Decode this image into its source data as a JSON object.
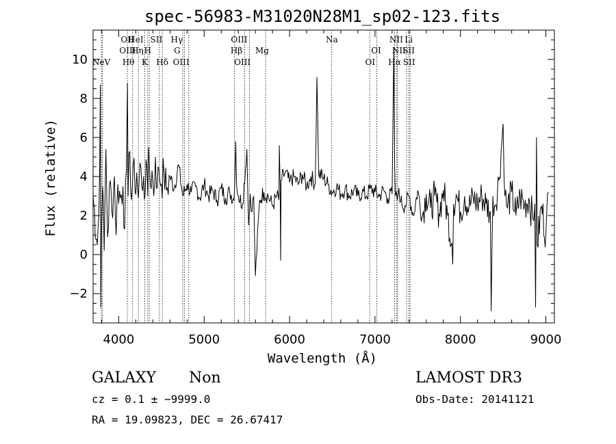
{
  "chart_data": {
    "type": "line",
    "title": "spec-56983-M31020N28M1_sp02-123.fits",
    "xlabel": "Wavelength (Å)",
    "ylabel": "Flux (relative)",
    "xlim": [
      3700,
      9100
    ],
    "ylim": [
      -3.5,
      11.5
    ],
    "xticks": [
      4000,
      5000,
      6000,
      7000,
      8000,
      9000
    ],
    "xtick_labels": [
      "4000",
      "5000",
      "6000",
      "7000",
      "8000",
      "9000"
    ],
    "yticks": [
      -2,
      0,
      2,
      4,
      6,
      8,
      10
    ],
    "ytick_labels": [
      "−2",
      "0",
      "2",
      "4",
      "6",
      "8",
      "10"
    ],
    "grid": false,
    "series": [
      {
        "x": [
          3700,
          3750,
          3770,
          3785,
          3790,
          3800,
          3812,
          3830,
          3850,
          3870,
          3900,
          3920,
          3950,
          3970,
          3990,
          4020,
          4050,
          4070,
          4090,
          4102,
          4110,
          4130,
          4150,
          4170,
          4190,
          4210,
          4230,
          4250,
          4270,
          4290,
          4310,
          4330,
          4340,
          4350,
          4370,
          4390,
          4410,
          4430,
          4450,
          4470,
          4500,
          4530,
          4560,
          4600,
          4650,
          4700,
          4750,
          4800,
          4850,
          4900,
          4950,
          5000,
          5050,
          5100,
          5150,
          5200,
          5250,
          5300,
          5350,
          5370,
          5380,
          5400,
          5450,
          5500,
          5520,
          5540,
          5560,
          5580,
          5600,
          5650,
          5700,
          5750,
          5800,
          5850,
          5875,
          5880,
          5890,
          5895,
          5900,
          5950,
          6000,
          6050,
          6100,
          6150,
          6200,
          6250,
          6300,
          6320,
          6340,
          6400,
          6450,
          6500,
          6550,
          6600,
          6650,
          6700,
          6750,
          6800,
          6850,
          6900,
          6950,
          7000,
          7050,
          7100,
          7150,
          7200,
          7220,
          7230,
          7240,
          7260,
          7280,
          7300,
          7350,
          7400,
          7450,
          7500,
          7550,
          7600,
          7650,
          7700,
          7750,
          7800,
          7850,
          7900,
          7910,
          7920,
          7950,
          8000,
          8050,
          8100,
          8150,
          8200,
          8250,
          8300,
          8350,
          8360,
          8380,
          8400,
          8450,
          8500,
          8520,
          8550,
          8600,
          8650,
          8700,
          8750,
          8800,
          8850,
          8870,
          8880,
          8890,
          8900,
          8950,
          9000,
          9030
        ],
        "y": [
          3.0,
          0.5,
          2.5,
          8.7,
          -2.7,
          1.5,
          3.5,
          0.2,
          5.4,
          0.9,
          3.8,
          2.2,
          4.0,
          1.0,
          3.6,
          2.9,
          3.5,
          1.3,
          4.3,
          8.8,
          3.0,
          5.3,
          2.8,
          4.6,
          3.3,
          4.2,
          2.9,
          4.7,
          3.5,
          4.0,
          3.1,
          4.5,
          3.0,
          5.5,
          3.6,
          4.3,
          3.0,
          5.0,
          3.4,
          4.4,
          3.6,
          4.2,
          3.3,
          4.0,
          3.4,
          4.6,
          3.0,
          3.6,
          3.2,
          3.5,
          2.9,
          3.6,
          3.0,
          3.3,
          2.8,
          3.4,
          2.9,
          3.2,
          2.8,
          5.8,
          3.5,
          3.0,
          2.6,
          5.4,
          1.5,
          3.1,
          2.2,
          3.0,
          -1.1,
          2.8,
          3.2,
          3.0,
          2.5,
          3.0,
          2.8,
          5.6,
          3.5,
          -0.3,
          3.8,
          4.2,
          3.7,
          4.0,
          3.6,
          4.1,
          3.5,
          4.0,
          3.6,
          9.1,
          4.2,
          3.9,
          3.6,
          3.2,
          3.5,
          3.1,
          3.4,
          3.0,
          3.3,
          3.0,
          3.2,
          3.0,
          3.4,
          3.2,
          3.0,
          3.3,
          2.9,
          3.1,
          10.6,
          4.5,
          3.0,
          2.8,
          3.4,
          2.7,
          2.5,
          3.0,
          2.0,
          3.3,
          1.9,
          3.1,
          2.4,
          3.0,
          2.1,
          3.3,
          2.0,
          0.6,
          -0.5,
          2.6,
          3.1,
          2.2,
          3.0,
          2.4,
          2.9,
          2.6,
          3.0,
          2.6,
          2.2,
          -2.9,
          3.0,
          2.5,
          3.8,
          6.7,
          3.0,
          2.4,
          3.2,
          2.0,
          3.0,
          2.5,
          2.9,
          1.8,
          2.6,
          -2.7,
          6.0,
          0.5,
          2.5,
          1.0,
          3.2
        ]
      }
    ],
    "line_markers": [
      {
        "name": "NeV",
        "x": 3797,
        "row": 2
      },
      {
        "name": "OII",
        "x": 4101,
        "row": 0
      },
      {
        "name": "OIII",
        "x": 4104,
        "row": 1
      },
      {
        "name": "Hθ",
        "x": 4113,
        "row": 2
      },
      {
        "name": "HeI",
        "x": 4200,
        "row": 0
      },
      {
        "name": "Hη",
        "x": 4220,
        "row": 1
      },
      {
        "name": "K",
        "x": 4305,
        "row": 2
      },
      {
        "name": "H",
        "x": 4340,
        "row": 1
      },
      {
        "name": "SII",
        "x": 4440,
        "row": 0
      },
      {
        "name": "Hδ",
        "x": 4510,
        "row": 2
      },
      {
        "name": "Hγ",
        "x": 4680,
        "row": 0
      },
      {
        "name": "G",
        "x": 4685,
        "row": 1
      },
      {
        "name": "OIII",
        "x": 4730,
        "row": 2
      },
      {
        "name": "OIII",
        "x": 5410,
        "row": 0
      },
      {
        "name": "Hβ",
        "x": 5378,
        "row": 1
      },
      {
        "name": "OIII",
        "x": 5448,
        "row": 2
      },
      {
        "name": "Mg",
        "x": 5678,
        "row": 1
      },
      {
        "name": "Na",
        "x": 6495,
        "row": 0
      },
      {
        "name": "OI",
        "x": 7013,
        "row": 1
      },
      {
        "name": "OI",
        "x": 6943,
        "row": 2
      },
      {
        "name": "NII",
        "x": 7248,
        "row": 0
      },
      {
        "name": "NII",
        "x": 7280,
        "row": 1
      },
      {
        "name": "Hα",
        "x": 7230,
        "row": 2
      },
      {
        "name": "Li",
        "x": 7395,
        "row": 0
      },
      {
        "name": "SII",
        "x": 7395,
        "row": 1
      },
      {
        "name": "SII",
        "x": 7399,
        "row": 2
      }
    ],
    "marker_lines_x": [
      3797,
      3810,
      4101,
      4163,
      4230,
      4305,
      4340,
      4358,
      4475,
      4510,
      4750,
      4770,
      4820,
      5355,
      5475,
      5530,
      5720,
      6490,
      6938,
      7020,
      7230,
      7255,
      7265,
      7370,
      7395,
      7410
    ]
  },
  "footer": {
    "classification": "GALAXY",
    "subclass": "Non",
    "survey": "LAMOST DR3",
    "redshift": "cz = 0.1 ± −9999.0",
    "obs_date": "Obs-Date: 20141121",
    "coords": "RA =  19.09823, DEC =  26.67417"
  }
}
